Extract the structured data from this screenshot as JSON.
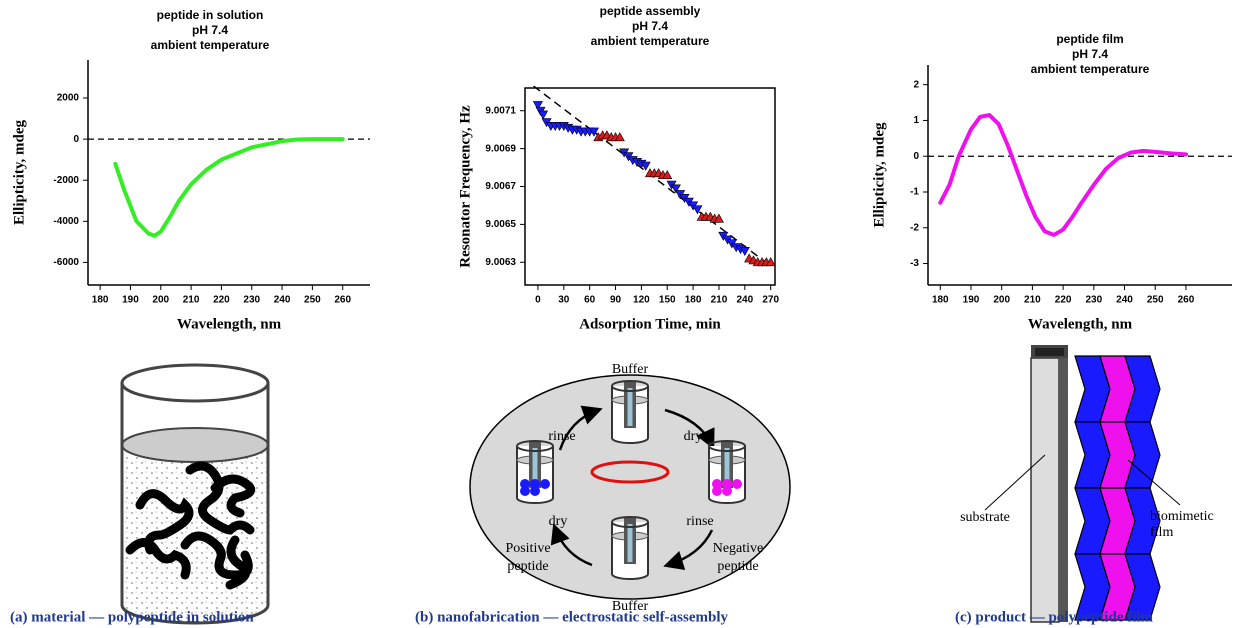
{
  "chart_data": [
    {
      "type": "line",
      "title": [
        "peptide in solution",
        "pH 7.4",
        "ambient temperature"
      ],
      "xlabel": "Wavelength, nm",
      "ylabel": "Ellipticity, mdeg",
      "x": [
        185,
        188,
        192,
        196,
        198,
        200,
        203,
        206,
        210,
        215,
        220,
        225,
        230,
        235,
        240,
        245,
        250,
        255,
        260
      ],
      "series": [
        {
          "color": "#33ee22",
          "values": [
            -1200,
            -2500,
            -4000,
            -4600,
            -4700,
            -4500,
            -3800,
            -3000,
            -2200,
            -1500,
            -1000,
            -700,
            -400,
            -250,
            -100,
            -20,
            0,
            0,
            0
          ]
        }
      ],
      "xlim": [
        176,
        269
      ],
      "ylim": [
        -7100,
        3850
      ],
      "xticks": [
        180,
        190,
        200,
        210,
        220,
        230,
        240,
        250,
        260
      ],
      "yticks": [
        -6000,
        -4000,
        -2000,
        0,
        2000
      ],
      "hline": 0
    },
    {
      "type": "scatter",
      "title": [
        "peptide assembly",
        "pH 7.4",
        "ambient temperature"
      ],
      "xlabel": "Adsorption Time, min",
      "ylabel": "Resonator Frequency, Hz",
      "series": [
        {
          "color": "#1a1aff",
          "marker": "triangle-down",
          "x": [
            0,
            3,
            6,
            10,
            15,
            20,
            25,
            30,
            35,
            40,
            45,
            50,
            55,
            60,
            65
          ],
          "values": [
            9.00713,
            9.0071,
            9.00708,
            9.00704,
            9.00702,
            9.00702,
            9.00702,
            9.00702,
            9.00701,
            9.007,
            9.007,
            9.00699,
            9.00699,
            9.00699,
            9.00699
          ]
        },
        {
          "color": "#dd1a1a",
          "marker": "triangle-up",
          "x": [
            70,
            75,
            80,
            85,
            90,
            95
          ],
          "values": [
            9.00696,
            9.00697,
            9.00697,
            9.00696,
            9.00696,
            9.00696
          ]
        },
        {
          "color": "#1a1aff",
          "marker": "triangle-down",
          "x": [
            100,
            105,
            110,
            115,
            120,
            125
          ],
          "values": [
            9.00688,
            9.00686,
            9.00684,
            9.00683,
            9.00682,
            9.00681
          ]
        },
        {
          "color": "#dd1a1a",
          "marker": "triangle-up",
          "x": [
            130,
            135,
            140,
            145,
            150
          ],
          "values": [
            9.00677,
            9.00677,
            9.00677,
            9.00676,
            9.00676
          ]
        },
        {
          "color": "#1a1aff",
          "marker": "triangle-down",
          "x": [
            155,
            160,
            165,
            170,
            175,
            180,
            185
          ],
          "values": [
            9.00671,
            9.00669,
            9.00666,
            9.00664,
            9.00662,
            9.0066,
            9.00658
          ]
        },
        {
          "color": "#dd1a1a",
          "marker": "triangle-up",
          "x": [
            190,
            195,
            200,
            205,
            210
          ],
          "values": [
            9.00654,
            9.00654,
            9.00654,
            9.00653,
            9.00653
          ]
        },
        {
          "color": "#1a1aff",
          "marker": "triangle-down",
          "x": [
            215,
            220,
            225,
            230,
            235,
            240
          ],
          "values": [
            9.00644,
            9.00642,
            9.0064,
            9.00638,
            9.00637,
            9.00636
          ]
        },
        {
          "color": "#dd1a1a",
          "marker": "triangle-up",
          "x": [
            245,
            250,
            255,
            260,
            265,
            270
          ],
          "values": [
            9.00632,
            9.00631,
            9.0063,
            9.0063,
            9.0063,
            9.0063
          ]
        }
      ],
      "fit": {
        "x": [
          -5,
          270
        ],
        "values": [
          9.00723,
          9.00628
        ]
      },
      "xlim": [
        -15,
        275
      ],
      "ylim": [
        9.00618,
        9.00722
      ],
      "xticks": [
        0,
        30,
        60,
        90,
        120,
        150,
        180,
        210,
        240,
        270
      ],
      "yticks": [
        9.0063,
        9.0065,
        9.0067,
        9.0069,
        9.0071
      ]
    },
    {
      "type": "line",
      "title": [
        "peptide film",
        "pH 7.4",
        "ambient temperature"
      ],
      "xlabel": "Wavelength, nm",
      "ylabel": "Ellipticity, mdeg",
      "x": [
        180,
        183,
        186,
        190,
        193,
        196,
        199,
        202,
        205,
        208,
        211,
        214,
        217,
        220,
        223,
        226,
        230,
        234,
        238,
        242,
        246,
        250,
        255,
        260
      ],
      "series": [
        {
          "color": "#ee11ee",
          "values": [
            -1.3,
            -0.8,
            0,
            0.75,
            1.1,
            1.15,
            0.9,
            0.3,
            -0.4,
            -1.1,
            -1.7,
            -2.1,
            -2.2,
            -2.05,
            -1.7,
            -1.3,
            -0.8,
            -0.35,
            -0.05,
            0.1,
            0.15,
            0.12,
            0.08,
            0.05
          ]
        }
      ],
      "xlim": [
        176,
        275
      ],
      "ylim": [
        -3.6,
        2.55
      ],
      "xticks": [
        180,
        190,
        200,
        210,
        220,
        230,
        240,
        250,
        260
      ],
      "yticks": [
        -3,
        -2,
        -1,
        0,
        1,
        2
      ],
      "hline": 0
    }
  ],
  "diagrams": {
    "b": {
      "top": "Buffer",
      "bottom": "Buffer",
      "rinse_top": "rinse",
      "dry_top": "dry",
      "rinse_bottom": "rinse",
      "dry_bottom": "dry",
      "negative": [
        "Negative",
        "peptide"
      ],
      "positive": [
        "Positive",
        "peptide"
      ]
    },
    "c": {
      "substrate": "substrate",
      "film": [
        "biomimetic",
        "film"
      ]
    }
  },
  "captions": [
    "(a)  material — polypeptide in solution",
    "(b) nanofabrication — electrostatic self-assembly",
    "(c)  product — polypeptide film"
  ]
}
